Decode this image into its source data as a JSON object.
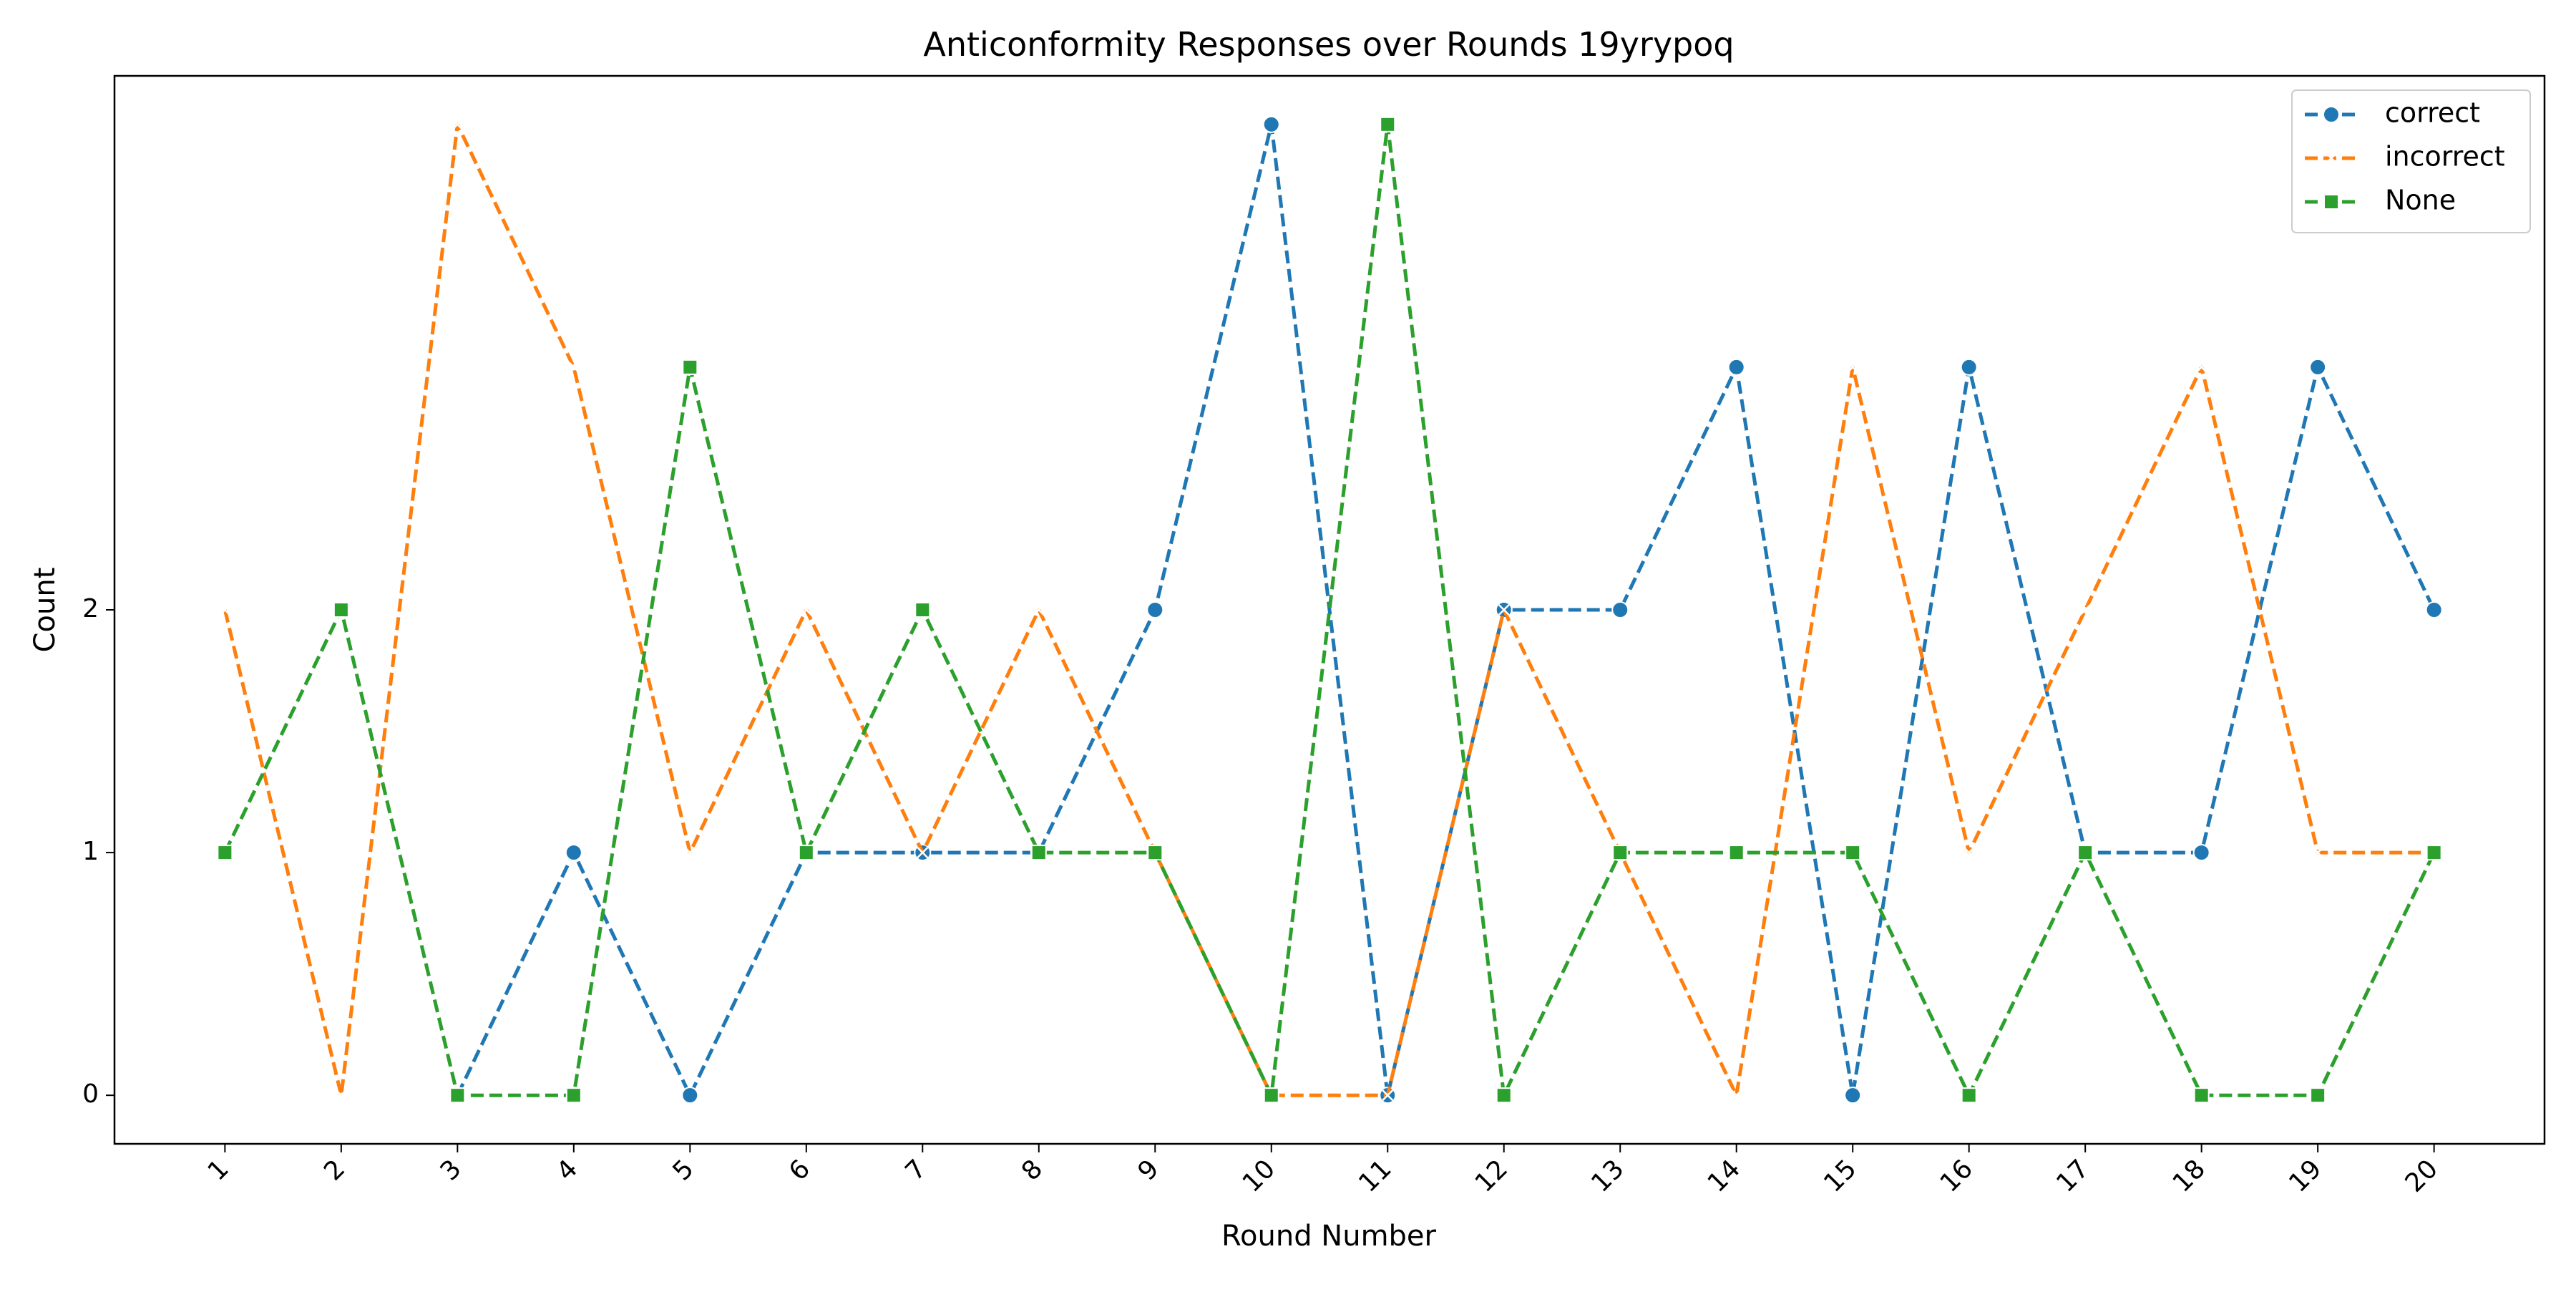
{
  "chart_data": {
    "type": "line",
    "title": "Anticonformity Responses over Rounds 19yrypoq",
    "xlabel": "Round Number",
    "ylabel": "Count",
    "x": [
      1,
      2,
      3,
      4,
      5,
      6,
      7,
      8,
      9,
      10,
      11,
      12,
      13,
      14,
      15,
      16,
      17,
      18,
      19,
      20
    ],
    "x_tick_labels": [
      "1",
      "2",
      "3",
      "4",
      "5",
      "6",
      "7",
      "8",
      "9",
      "10",
      "11",
      "12",
      "13",
      "14",
      "15",
      "16",
      "17",
      "18",
      "19",
      "20"
    ],
    "y_ticks": [
      0,
      1,
      2
    ],
    "y_tick_labels": [
      "0",
      "1",
      "2"
    ],
    "xlim": [
      0.05,
      20.95
    ],
    "ylim": [
      -0.2,
      4.2
    ],
    "grid": false,
    "legend_position": "top-right",
    "series": [
      {
        "name": "correct",
        "color": "#1f77b4",
        "marker": "circle",
        "dash": "dashed",
        "values": [
          null,
          null,
          0,
          1,
          0,
          1,
          1,
          1,
          2,
          4,
          0,
          2,
          2,
          3,
          0,
          3,
          1,
          1,
          3,
          2
        ]
      },
      {
        "name": "incorrect",
        "color": "#ff7f0e",
        "marker": "x",
        "dash": "dashed",
        "values": [
          2,
          0,
          4,
          3,
          1,
          2,
          1,
          2,
          1,
          0,
          0,
          2,
          1,
          0,
          3,
          1,
          2,
          3,
          1,
          1
        ]
      },
      {
        "name": "None",
        "color": "#2ca02c",
        "marker": "square",
        "dash": "dashed",
        "values": [
          1,
          2,
          0,
          0,
          3,
          1,
          2,
          1,
          1,
          0,
          4,
          0,
          1,
          1,
          1,
          0,
          1,
          0,
          0,
          1
        ]
      }
    ]
  }
}
